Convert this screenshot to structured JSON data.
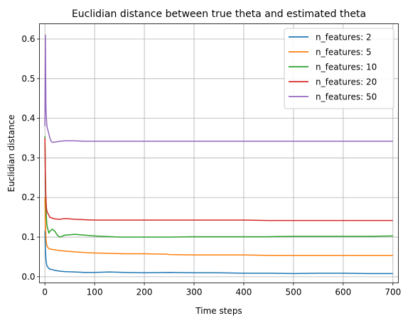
{
  "chart_data": {
    "type": "line",
    "title": "Euclidian distance between true theta and estimated theta",
    "xlabel": "Time steps",
    "ylabel": "Euclidian distance",
    "xlim": [
      -11,
      711
    ],
    "ylim": [
      -0.0155,
      0.6385
    ],
    "xticks": [
      0,
      100,
      200,
      300,
      400,
      500,
      600,
      700
    ],
    "yticks": [
      0.0,
      0.1,
      0.2,
      0.3,
      0.4,
      0.5,
      0.6
    ],
    "xtick_labels": [
      "0",
      "100",
      "200",
      "300",
      "400",
      "500",
      "600",
      "700"
    ],
    "ytick_labels": [
      "0.0",
      "0.1",
      "0.2",
      "0.3",
      "0.4",
      "0.5",
      "0.6"
    ],
    "grid": true,
    "legend_position": "top-right",
    "series": [
      {
        "name": "n_features: 2",
        "color": "#1f77b4",
        "x": [
          0,
          1,
          2,
          3,
          4,
          6,
          8,
          10,
          15,
          20,
          30,
          40,
          60,
          80,
          100,
          130,
          160,
          200,
          250,
          300,
          350,
          400,
          450,
          500,
          550,
          600,
          650,
          700
        ],
        "y": [
          0.115,
          0.07,
          0.045,
          0.034,
          0.028,
          0.024,
          0.021,
          0.019,
          0.018,
          0.016,
          0.014,
          0.013,
          0.012,
          0.011,
          0.011,
          0.012,
          0.011,
          0.01,
          0.011,
          0.01,
          0.01,
          0.009,
          0.009,
          0.008,
          0.009,
          0.009,
          0.008,
          0.008
        ]
      },
      {
        "name": "n_features: 5",
        "color": "#ff7f0e",
        "x": [
          0,
          1,
          2,
          3,
          4,
          6,
          8,
          10,
          15,
          20,
          30,
          40,
          60,
          80,
          100,
          130,
          160,
          200,
          245,
          250,
          300,
          350,
          400,
          450,
          500,
          550,
          600,
          650,
          700
        ],
        "y": [
          0.2,
          0.14,
          0.1,
          0.085,
          0.078,
          0.074,
          0.071,
          0.07,
          0.069,
          0.068,
          0.066,
          0.065,
          0.063,
          0.061,
          0.06,
          0.059,
          0.058,
          0.058,
          0.057,
          0.056,
          0.055,
          0.055,
          0.055,
          0.054,
          0.054,
          0.054,
          0.054,
          0.054,
          0.054
        ]
      },
      {
        "name": "n_features: 10",
        "color": "#2ca02c",
        "x": [
          0,
          1,
          2,
          3,
          4,
          6,
          8,
          10,
          15,
          20,
          25,
          30,
          40,
          60,
          80,
          100,
          150,
          200,
          250,
          300,
          350,
          400,
          450,
          500,
          550,
          600,
          650,
          700
        ],
        "y": [
          0.355,
          0.25,
          0.18,
          0.15,
          0.13,
          0.12,
          0.11,
          0.115,
          0.12,
          0.115,
          0.105,
          0.1,
          0.105,
          0.107,
          0.105,
          0.103,
          0.1,
          0.1,
          0.1,
          0.101,
          0.101,
          0.101,
          0.101,
          0.102,
          0.102,
          0.102,
          0.102,
          0.103
        ]
      },
      {
        "name": "n_features: 20",
        "color": "#d62728",
        "x": [
          0,
          1,
          2,
          3,
          4,
          6,
          8,
          10,
          15,
          20,
          30,
          40,
          60,
          80,
          100,
          150,
          200,
          250,
          300,
          350,
          400,
          450,
          500,
          550,
          600,
          650,
          700
        ],
        "y": [
          0.35,
          0.25,
          0.2,
          0.175,
          0.165,
          0.16,
          0.155,
          0.15,
          0.148,
          0.146,
          0.145,
          0.147,
          0.145,
          0.144,
          0.143,
          0.143,
          0.143,
          0.143,
          0.143,
          0.143,
          0.143,
          0.142,
          0.142,
          0.142,
          0.142,
          0.142,
          0.142
        ]
      },
      {
        "name": "n_features: 50",
        "color": "#9467bd",
        "x": [
          0,
          1,
          2,
          3,
          4,
          6,
          8,
          10,
          12,
          15,
          20,
          30,
          40,
          60,
          80,
          100,
          150,
          200,
          250,
          300,
          350,
          400,
          450,
          500,
          550,
          600,
          650,
          700
        ],
        "y": [
          0.38,
          0.61,
          0.43,
          0.4,
          0.38,
          0.37,
          0.36,
          0.35,
          0.343,
          0.339,
          0.34,
          0.342,
          0.343,
          0.343,
          0.342,
          0.342,
          0.342,
          0.342,
          0.342,
          0.342,
          0.342,
          0.342,
          0.342,
          0.342,
          0.342,
          0.342,
          0.342,
          0.342
        ]
      }
    ]
  }
}
